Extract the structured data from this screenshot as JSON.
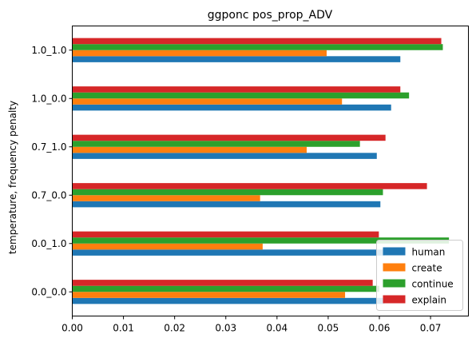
{
  "chart_data": {
    "type": "bar",
    "orientation": "horizontal",
    "title": "ggponc pos_prop_ADV",
    "xlabel": "",
    "ylabel": "temperature, frequency penalty",
    "categories": [
      "0.0_0.0",
      "0.0_1.0",
      "0.7_0.0",
      "0.7_1.0",
      "1.0_0.0",
      "1.0_1.0"
    ],
    "xlim": [
      0,
      0.0774
    ],
    "xticks": [
      {
        "value": 0.0,
        "label": "0.00"
      },
      {
        "value": 0.01,
        "label": "0.01"
      },
      {
        "value": 0.02,
        "label": "0.02"
      },
      {
        "value": 0.03,
        "label": "0.03"
      },
      {
        "value": 0.04,
        "label": "0.04"
      },
      {
        "value": 0.05,
        "label": "0.05"
      },
      {
        "value": 0.06,
        "label": "0.06"
      },
      {
        "value": 0.07,
        "label": "0.07"
      }
    ],
    "series": [
      {
        "name": "human",
        "color": "#1f77b4",
        "values": [
          0.061,
          0.061,
          0.0602,
          0.0595,
          0.0623,
          0.0641
        ]
      },
      {
        "name": "create",
        "color": "#ff7f0e",
        "values": [
          0.0533,
          0.0372,
          0.0367,
          0.0458,
          0.0527,
          0.0497
        ]
      },
      {
        "name": "continue",
        "color": "#2ca02c",
        "values": [
          0.06,
          0.0736,
          0.0607,
          0.0562,
          0.0658,
          0.0724
        ]
      },
      {
        "name": "explain",
        "color": "#d62728",
        "values": [
          0.0587,
          0.0599,
          0.0693,
          0.0612,
          0.0641,
          0.0721
        ]
      }
    ],
    "grid": false,
    "legend_position": "lower-right"
  }
}
